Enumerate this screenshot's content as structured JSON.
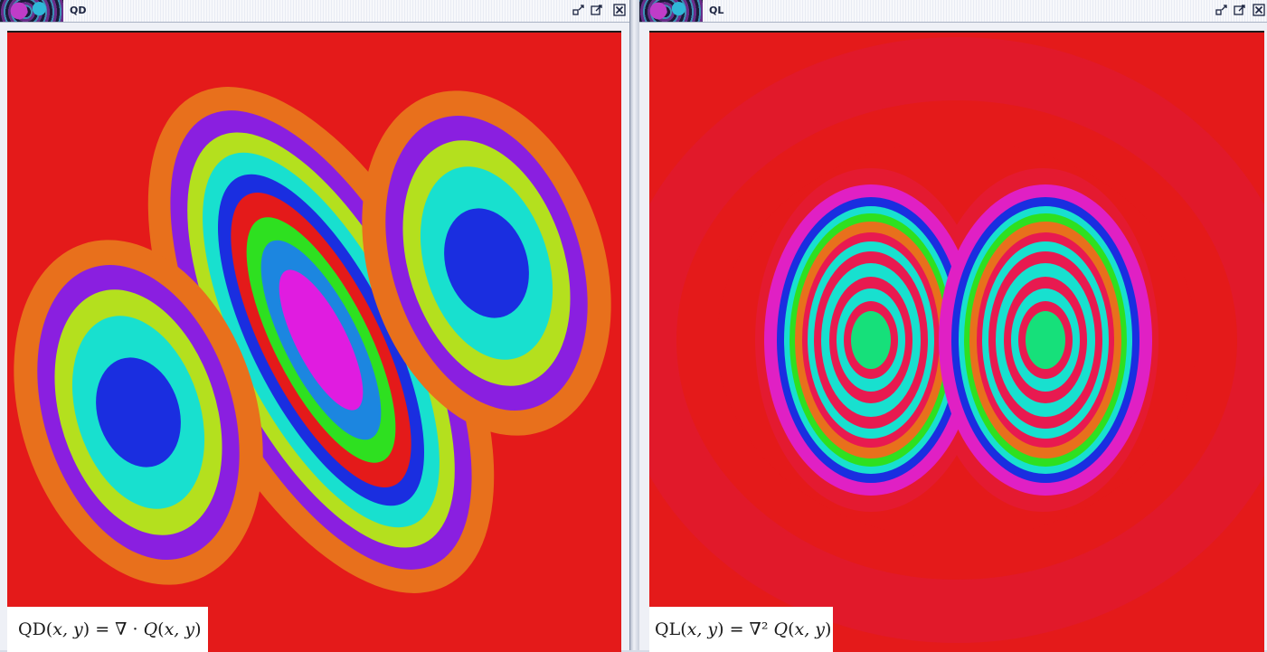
{
  "windows": [
    {
      "id": "qd",
      "title": "QD",
      "formula_lhs": "QD(",
      "formula_vars": "x, y",
      "formula_mid": ") = ∇ · ",
      "formula_fn": "Q",
      "formula_open": "(",
      "formula_vars2": "x, y",
      "formula_close": ")",
      "buttons": [
        "restore-icon",
        "maximize-icon",
        "close-icon"
      ]
    },
    {
      "id": "ql",
      "title": "QL",
      "formula_lhs": "QL(",
      "formula_vars": "x, y",
      "formula_mid": ") = ∇² ",
      "formula_fn": "Q",
      "formula_open": "(",
      "formula_vars2": "x, y",
      "formula_close": ")",
      "buttons": [
        "restore-icon",
        "maximize-icon",
        "close-icon"
      ]
    }
  ],
  "colors": {
    "background_red": "#e41a1a",
    "orange": "#e8701c",
    "purple": "#8a1fe0",
    "lime": "#b4e01e",
    "cyan": "#18e0cf",
    "blue": "#1a2ee0",
    "green": "#2ee020",
    "sky": "#1c86e0",
    "magenta": "#e01ce0",
    "pink": "#e81a50",
    "mint": "#16e07a",
    "hotpink": "#e020c4"
  }
}
